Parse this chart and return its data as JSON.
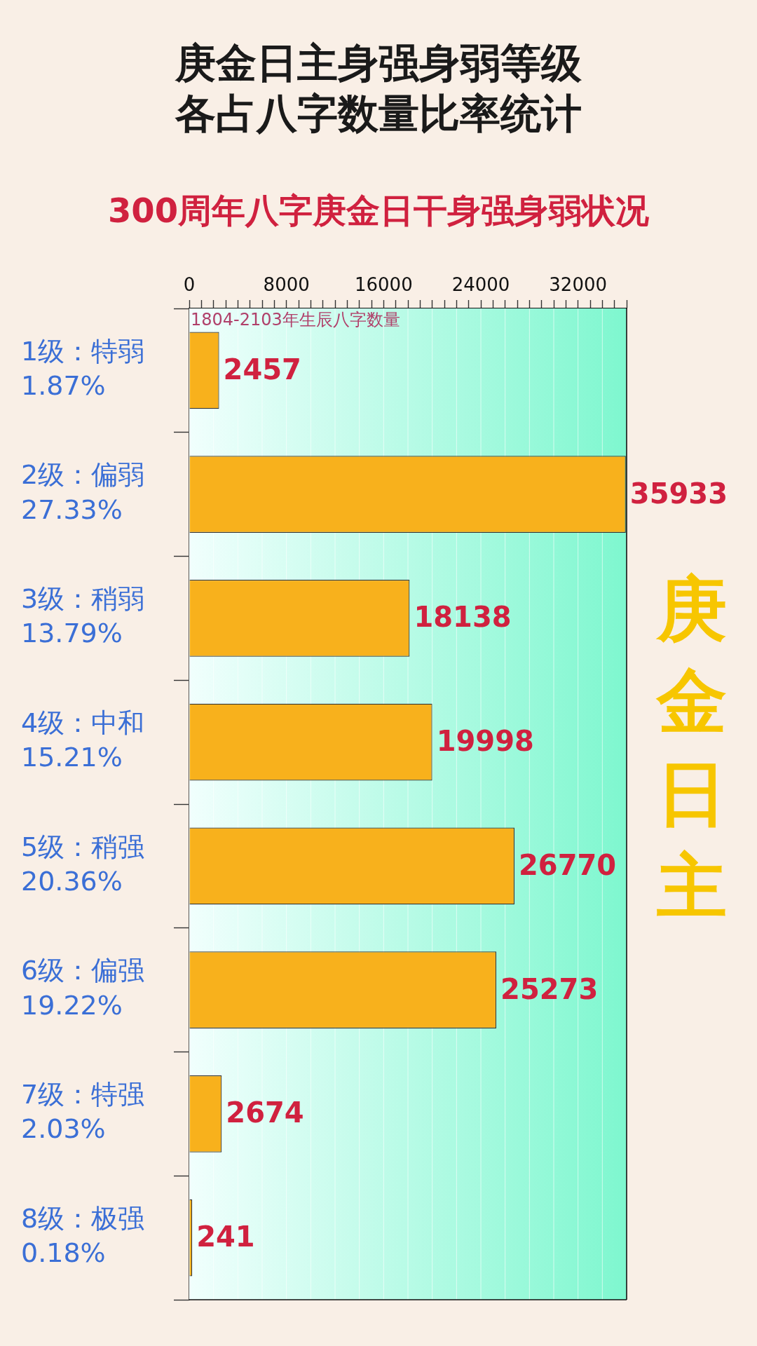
{
  "chart_data": {
    "type": "bar",
    "orientation": "horizontal",
    "title": "庚金日主身强身弱等级各占八字数量比率统计",
    "subtitle": "300周年八字庚金日干身强身弱状况",
    "xlabel": "1804-2103年生辰八字数量",
    "categories": [
      "1级：特弱\n1.87%",
      "2级：偏弱\n27.33%",
      "3级：稍弱\n13.79%",
      "4级：中和\n15.21%",
      "5级：稍强\n20.36%",
      "6级：偏强\n19.22%",
      "7级：特强\n2.03%",
      "8级：极强\n0.18%"
    ],
    "values": [
      2457,
      35933,
      18138,
      19998,
      26770,
      25273,
      2674,
      241
    ],
    "color": "#f8b11c",
    "data_labels": true,
    "grid": "x",
    "legend": false,
    "xlim": [
      0,
      36000
    ],
    "xticks": [
      0,
      {
        "value": 1000,
        "label": null
      },
      {
        "value": 2000,
        "label": null
      },
      {
        "value": 3000,
        "label": null
      },
      {
        "value": 4000,
        "label": null
      },
      {
        "value": 5000,
        "label": null
      },
      {
        "value": 6000,
        "label": null
      },
      {
        "value": 7000,
        "label": null
      },
      8000,
      {
        "value": 9000,
        "label": null
      },
      {
        "value": 10000,
        "label": null
      },
      {
        "value": 11000,
        "label": null
      },
      {
        "value": 12000,
        "label": null
      },
      {
        "value": 13000,
        "label": null
      },
      {
        "value": 14000,
        "label": null
      },
      {
        "value": 15000,
        "label": null
      },
      16000,
      {
        "value": 17000,
        "label": null
      },
      {
        "value": 18000,
        "label": null
      },
      {
        "value": 19000,
        "label": null
      },
      {
        "value": 20000,
        "label": null
      },
      {
        "value": 21000,
        "label": null
      },
      {
        "value": 22000,
        "label": null
      },
      {
        "value": 23000,
        "label": null
      },
      24000,
      {
        "value": 25000,
        "label": null
      },
      {
        "value": 26000,
        "label": null
      },
      {
        "value": 27000,
        "label": null
      },
      {
        "value": 28000,
        "label": null
      },
      {
        "value": 29000,
        "label": null
      },
      {
        "value": 30000,
        "label": null
      },
      {
        "value": 31000,
        "label": null
      },
      32000,
      {
        "value": 33000,
        "label": null
      },
      {
        "value": 34000,
        "label": null
      },
      {
        "value": 35000,
        "label": null
      },
      {
        "value": 36000,
        "label": null
      }
    ],
    "annotations": [
      "庚金日主"
    ]
  }
}
